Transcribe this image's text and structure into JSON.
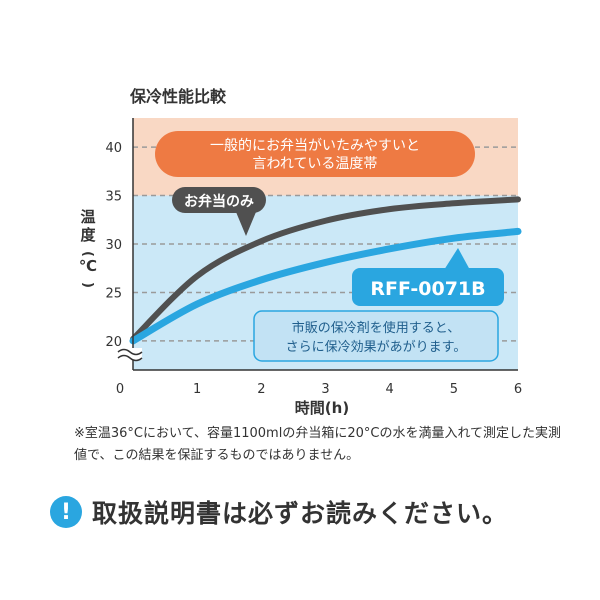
{
  "chart_data": {
    "type": "line",
    "title": "保冷性能比較",
    "xlabel": "時間(h)",
    "ylabel": "温度(℃)",
    "x": [
      0,
      1,
      2,
      3,
      4,
      5,
      6
    ],
    "xlim": [
      0,
      6
    ],
    "ylim": [
      17,
      43
    ],
    "x_ticks": [
      "0",
      "1",
      "2",
      "3",
      "4",
      "5",
      "6"
    ],
    "y_ticks": [
      20,
      25,
      30,
      35,
      40
    ],
    "grid": "horizontal-dashed",
    "axis_break": true,
    "danger_zone": {
      "from": 35,
      "label_line1": "一般的にお弁当がいたみやすいと",
      "label_line2": "言われている温度帯"
    },
    "series": [
      {
        "name": "お弁当のみ",
        "color": "#505050",
        "values": [
          20.2,
          26.7,
          30.3,
          32.4,
          33.6,
          34.2,
          34.6
        ]
      },
      {
        "name": "RFF-0071B",
        "color": "#2aa6e0",
        "values": [
          20.0,
          23.8,
          26.3,
          28.1,
          29.5,
          30.6,
          31.3
        ]
      }
    ],
    "callout": {
      "line1": "市販の保冷剤を使用すると、",
      "line2": "さらに保冷効果があがります。"
    }
  },
  "colors": {
    "danger_zone": "#f9d8c4",
    "safe_zone": "#cbe8f7",
    "danger_pill": "#ee7a43",
    "callout_box": "#c2e2f4",
    "callout_border": "#2aa6e0",
    "series_fill_blue": "#2aa6e0",
    "series_fill_dark": "#505050"
  },
  "note_text": "※室温36°Cにおいて、容量1100mlの弁当箱に20°Cの水を満量入れて測定した実測値で、この結果を保証するものではありません。",
  "notice": {
    "icon": "!",
    "text": "取扱説明書は必ずお読みください。"
  }
}
